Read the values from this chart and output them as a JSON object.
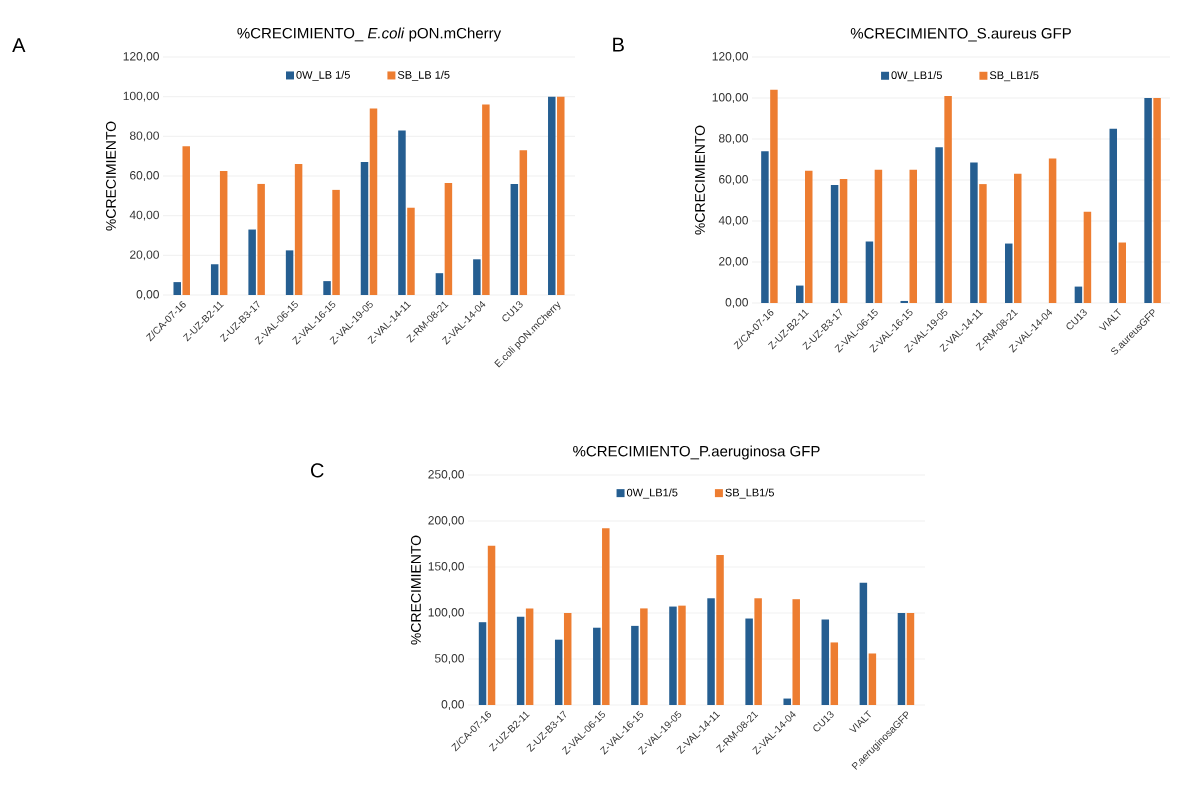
{
  "chart_data": [
    {
      "type": "bar",
      "title": "%CRECIMIENTO_ *E.coli* pON.mCherry",
      "ylabel": "%CRECIMIENTO",
      "annotations": [
        "A"
      ],
      "categories": [
        "Z/CA-07-16",
        "Z-UZ-B2-11",
        "Z-UZ-B3-17",
        "Z-VAL-06-15",
        "Z-VAL-16-15",
        "Z-VAL-19-05",
        "Z-VAL-14-11",
        "Z-RM-08-21",
        "Z-VAL-14-04",
        "CU13",
        "E.coli pON.mCherry"
      ],
      "series": [
        {
          "name": "0W_LB 1/5",
          "color": "#255e91",
          "values": [
            6.5,
            15.5,
            33,
            22.5,
            7,
            67,
            83,
            11,
            18,
            56,
            100
          ]
        },
        {
          "name": "SB_LB 1/5",
          "color": "#ed7d31",
          "values": [
            75,
            62.5,
            56,
            66,
            53,
            94,
            44,
            56.5,
            96,
            73,
            100
          ]
        }
      ],
      "ylim": [
        0,
        120
      ],
      "yticks": [
        {
          "value": 0,
          "label": "0,00"
        },
        {
          "value": 20,
          "label": "20,00"
        },
        {
          "value": 40,
          "label": "40,00"
        },
        {
          "value": 60,
          "label": "60,00"
        },
        {
          "value": 80,
          "label": "80,00"
        },
        {
          "value": 100,
          "label": "100,00"
        },
        {
          "value": 120,
          "label": "120,00"
        }
      ],
      "grid": "y",
      "legend": "top"
    },
    {
      "type": "bar",
      "title": "%CRECIMIENTO_S.aureus GFP",
      "ylabel": "%CRECIMIENTO",
      "annotations": [
        "B"
      ],
      "categories": [
        "Z/CA-07-16",
        "Z-UZ-B2-11",
        "Z-UZ-B3-17",
        "Z-VAL-06-15",
        "Z-VAL-16-15",
        "Z-VAL-19-05",
        "Z-VAL-14-11",
        "Z-RM-08-21",
        "Z-VAL-14-04",
        "CU13",
        "VIALT",
        "S.aureusGFP"
      ],
      "series": [
        {
          "name": "0W_LB1/5",
          "color": "#255e91",
          "values": [
            74,
            8.5,
            57.5,
            30,
            1,
            76,
            68.5,
            29,
            0,
            8,
            85,
            100
          ]
        },
        {
          "name": "SB_LB1/5",
          "color": "#ed7d31",
          "values": [
            104,
            64.5,
            60.5,
            65,
            65,
            101,
            58,
            63,
            70.5,
            44.5,
            29.5,
            100
          ]
        }
      ],
      "ylim": [
        0,
        120
      ],
      "yticks": [
        {
          "value": 0,
          "label": "0,00"
        },
        {
          "value": 20,
          "label": "20,00"
        },
        {
          "value": 40,
          "label": "40,00"
        },
        {
          "value": 60,
          "label": "60,00"
        },
        {
          "value": 80,
          "label": "80,00"
        },
        {
          "value": 100,
          "label": "100,00"
        },
        {
          "value": 120,
          "label": "120,00"
        }
      ],
      "grid": "y",
      "legend": "top"
    },
    {
      "type": "bar",
      "title": "%CRECIMIENTO_P.aeruginosa GFP",
      "ylabel": "%CRECIMIENTO",
      "annotations": [
        "C"
      ],
      "categories": [
        "Z/CA-07-16",
        "Z-UZ-B2-11",
        "Z-UZ-B3-17",
        "Z-VAL-06-15",
        "Z-VAL-16-15",
        "Z-VAL-19-05",
        "Z-VAL-14-11",
        "Z-RM-08-21",
        "Z-VAL-14-04",
        "CU13",
        "VIALT",
        "P.aeruginosaGFP"
      ],
      "series": [
        {
          "name": "0W_LB1/5",
          "color": "#255e91",
          "values": [
            90,
            96,
            71,
            84,
            86,
            107,
            116,
            94,
            7,
            93,
            133,
            100
          ]
        },
        {
          "name": "SB_LB1/5",
          "color": "#ed7d31",
          "values": [
            173,
            105,
            100,
            192,
            105,
            108,
            163,
            116,
            115,
            68,
            56,
            100
          ]
        }
      ],
      "ylim": [
        0,
        250
      ],
      "yticks": [
        {
          "value": 0,
          "label": "0,00"
        },
        {
          "value": 50,
          "label": "50,00"
        },
        {
          "value": 100,
          "label": "100,00"
        },
        {
          "value": 150,
          "label": "150,00"
        },
        {
          "value": 200,
          "label": "200,00"
        },
        {
          "value": 250,
          "label": "250,00"
        }
      ],
      "grid": "y",
      "legend": "top"
    }
  ]
}
